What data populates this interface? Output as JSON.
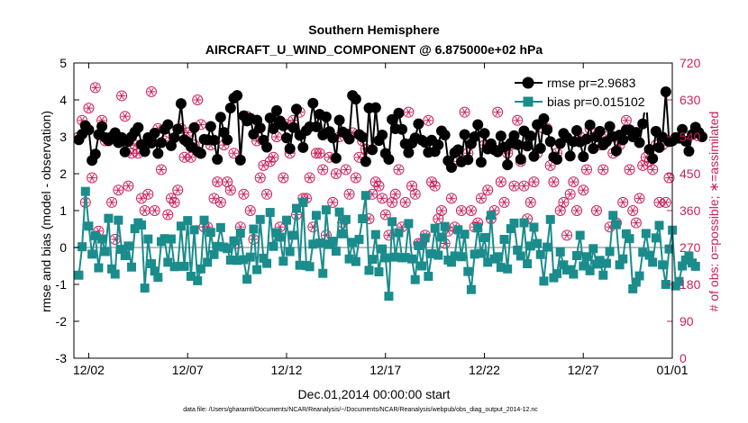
{
  "chart_data": {
    "type": "line",
    "title": "Southern Hemisphere",
    "subtitle": "AIRCRAFT_U_WIND_COMPONENT @ 6.875000e+02 hPa",
    "xlabel": "Dec.01,2014 00:00:00 start",
    "ylabel_left": "rmse and bias (model - observation)",
    "ylabel_right": "# of obs: o=possible; ∗=assimilated",
    "x_ticks": [
      {
        "x": 1.5,
        "label": "12/02"
      },
      {
        "x": 6.5,
        "label": "12/07"
      },
      {
        "x": 11.5,
        "label": "12/12"
      },
      {
        "x": 16.5,
        "label": "12/17"
      },
      {
        "x": 21.5,
        "label": "12/22"
      },
      {
        "x": 26.5,
        "label": "12/27"
      },
      {
        "x": 31.0,
        "label": "01/01"
      }
    ],
    "xlim": [
      0.75,
      31.0
    ],
    "ylim_left": [
      -3,
      5
    ],
    "yticks_left": [
      "-3",
      "-2",
      "-1",
      "0",
      "1",
      "2",
      "3",
      "4",
      "5"
    ],
    "ylim_right": [
      0,
      720
    ],
    "yticks_right": [
      "0",
      "90",
      "180",
      "270",
      "360",
      "450",
      "540",
      "630",
      "720"
    ],
    "colors": {
      "rmse": "#000000",
      "bias": "#1a8c8c",
      "obs": "#cc1f5c",
      "zero_line": "#bdbdbd",
      "frame": "#000000"
    },
    "legend": {
      "position": "top-right",
      "rmse_label": "rmse pr=2.9683",
      "bias_label": "bias pr=0.015102"
    },
    "series": [
      {
        "name": "rmse pr=2.9683",
        "values": [
          2.92,
          3.07,
          3.3,
          3.19,
          2.36,
          2.53,
          3.06,
          3.28,
          2.98,
          2.9,
          3.0,
          3.11,
          2.84,
          2.98,
          2.59,
          2.87,
          3.0,
          3.13,
          3.25,
          2.79,
          2.6,
          2.98,
          2.83,
          3.1,
          2.55,
          2.84,
          3.2,
          3.33,
          2.76,
          2.98,
          3.21,
          3.9,
          2.92,
          2.85,
          2.73,
          3.25,
          2.6,
          2.55,
          2.93,
          2.92,
          3.28,
          2.91,
          2.39,
          3.53,
          3.12,
          2.92,
          3.78,
          4.05,
          4.12,
          2.37,
          3.57,
          3.43,
          3.5,
          3.07,
          3.45,
          3.24,
          2.91,
          2.72,
          3.51,
          3.22,
          3.71,
          3.43,
          3.3,
          2.97,
          2.68,
          3.25,
          3.75,
          3.04,
          2.71,
          3.17,
          3.27,
          3.91,
          3.27,
          3.61,
          3.05,
          3.54,
          3.14,
          2.97,
          2.42,
          3.45,
          3.13,
          3.08,
          2.94,
          4.12,
          4.02,
          3.06,
          2.99,
          2.33,
          3.78,
          2.65,
          3.79,
          2.9,
          3.05,
          2.55,
          2.39,
          3.47,
          3.22,
          3.64,
          3.2,
          2.81,
          2.57,
          2.83,
          2.97,
          3.35,
          2.91,
          2.85,
          2.58,
          2.91,
          2.6,
          2.78,
          3.16,
          3.05,
          2.35,
          2.17,
          2.57,
          2.65,
          2.32,
          3.06,
          2.38,
          2.81,
          3.0,
          3.33,
          2.31,
          3.09,
          2.67,
          2.81,
          2.65,
          2.59,
          3.02,
          2.72,
          2.24,
          2.83,
          3.03,
          2.79,
          2.39,
          3.16,
          2.75,
          3.02,
          2.47,
          3.33,
          2.69,
          3.49,
          3.19,
          2.87,
          2.45,
          2.39,
          2.82,
          3.09,
          2.98,
          2.48,
          2.87,
          3.17,
          2.86,
          2.46,
          2.94,
          3.32,
          2.68,
          3.0,
          3.15,
          2.78,
          2.87,
          3.28,
          3.01,
          2.62,
          3.05,
          2.92,
          3.19,
          3.19,
          3.0,
          3.12,
          2.84,
          3.35,
          4.02,
          2.66,
          2.41,
          3.15,
          2.71,
          2.99,
          4.22,
          2.87,
          2.89,
          2.98,
          2.96,
          3.2,
          2.88,
          2.61,
          3.06,
          3.26,
          3.12,
          3.0
        ]
      },
      {
        "name": "bias pr=0.015102",
        "values": [
          -0.75,
          0.02,
          1.52,
          0.58,
          -0.18,
          0.32,
          -0.55,
          0.23,
          -0.11,
          0.79,
          -0.58,
          -0.72,
          0.74,
          -0.05,
          -0.22,
          0.04,
          -0.53,
          0.51,
          0.67,
          0.61,
          -1.1,
          0.23,
          -0.44,
          -0.64,
          -0.81,
          0.16,
          0.24,
          -0.4,
          0.23,
          -0.52,
          -0.51,
          0.58,
          -0.51,
          0.73,
          -0.78,
          0.48,
          -0.9,
          -0.58,
          0.74,
          -0.4,
          0.41,
          -0.19,
          0.03,
          0.54,
          0.01,
          -0.03,
          -0.34,
          0.18,
          -0.35,
          0.39,
          -0.33,
          -0.86,
          -0.26,
          0.5,
          -0.6,
          0.76,
          -0.29,
          -0.43,
          0.95,
          0.03,
          0.4,
          0.28,
          -0.37,
          0.74,
          -0.11,
          0.33,
          1.06,
          -0.48,
          1.22,
          -0.49,
          -0.52,
          0.09,
          0.87,
          0.12,
          -0.7,
          1.02,
          0.08,
          0.17,
          -0.1,
          0.96,
          0.37,
          0.76,
          -0.31,
          0.14,
          -0.38,
          0.22,
          0.78,
          1.41,
          -0.62,
          -0.32,
          0.35,
          -0.66,
          -0.04,
          -0.28,
          -1.32,
          0.7,
          -0.26,
          0.4,
          -0.28,
          -0.27,
          0.65,
          -0.31,
          -0.87,
          0.05,
          -0.5,
          0.26,
          -0.78,
          -0.17,
          0.52,
          -0.21,
          0.28,
          0.57,
          -0.34,
          -0.4,
          -0.23,
          0.48,
          -0.25,
          0.36,
          -0.65,
          -1.14,
          -0.18,
          0.53,
          -0.16,
          0.27,
          -0.4,
          0.87,
          -0.31,
          -0.25,
          -0.54,
          0.22,
          -0.58,
          0.51,
          0.66,
          -0.07,
          -0.23,
          0.67,
          -0.44,
          0.04,
          0.55,
          0.11,
          -0.19,
          -0.91,
          0.01,
          0.76,
          -0.82,
          -0.71,
          -0.12,
          -0.47,
          -0.61,
          -0.6,
          -0.72,
          -0.22,
          0.33,
          -0.5,
          -0.25,
          -0.63,
          -0.03,
          -0.45,
          -0.35,
          -0.75,
          -0.43,
          -0.11,
          0.87,
          0.62,
          -0.47,
          -0.31,
          0.37,
          0.24,
          -1.12,
          -0.94,
          -0.77,
          -0.13,
          0.38,
          -0.21,
          -0.4,
          0.26,
          0.6,
          -0.47,
          -1.0,
          -0.04,
          0.47,
          -1.04,
          -0.92,
          -0.5,
          -0.34,
          -0.23,
          -0.42,
          -0.51
        ]
      },
      {
        "name": "possible",
        "values": [
          540,
          580,
          380,
          610,
          440,
          660,
          310,
          580,
          530,
          530,
          380,
          290,
          410,
          640,
          590,
          420,
          500,
          520,
          500,
          390,
          360,
          400,
          650,
          360,
          560,
          460,
          530,
          350,
          390,
          380,
          410,
          560,
          490,
          550,
          490,
          520,
          630,
          570,
          320,
          320,
          520,
          390,
          430,
          380,
          520,
          430,
          410,
          500,
          280,
          320,
          400,
          590,
          360,
          290,
          530,
          440,
          470,
          400,
          480,
          490,
          540,
          320,
          440,
          570,
          500,
          580,
          350,
          600,
          390,
          390,
          440,
          320,
          500,
          500,
          460,
          300,
          490,
          380,
          450,
          540,
          330,
          460,
          400,
          550,
          440,
          490,
          530,
          510,
          340,
          400,
          430,
          420,
          390,
          350,
          300,
          380,
          400,
          460,
          320,
          380,
          600,
          420,
          400,
          280,
          280,
          300,
          580,
          430,
          420,
          340,
          360,
          280,
          310,
          390,
          320,
          480,
          360,
          600,
          500,
          360,
          320,
          330,
          390,
          520,
          410,
          340,
          360,
          600,
          430,
          380,
          500,
          520,
          420,
          580,
          480,
          420,
          340,
          380,
          430,
          500,
          620,
          560,
          560,
          470,
          430,
          500,
          360,
          380,
          300,
          400,
          430,
          360,
          540,
          410,
          460,
          560,
          650,
          360,
          520,
          460,
          540,
          320,
          500,
          330,
          520,
          380,
          580,
          460,
          360,
          330,
          390,
          470,
          490,
          480,
          460,
          520,
          380,
          520,
          380,
          440
        ]
      },
      {
        "name": "assimilated",
        "values": [
          540,
          580,
          380,
          610,
          440,
          660,
          310,
          580,
          530,
          530,
          380,
          290,
          410,
          640,
          590,
          420,
          500,
          520,
          500,
          390,
          360,
          400,
          650,
          360,
          560,
          460,
          530,
          350,
          390,
          380,
          410,
          560,
          490,
          550,
          490,
          520,
          630,
          570,
          320,
          320,
          520,
          390,
          430,
          380,
          520,
          430,
          410,
          500,
          280,
          320,
          400,
          590,
          360,
          290,
          530,
          440,
          470,
          400,
          480,
          490,
          540,
          320,
          440,
          570,
          500,
          580,
          350,
          600,
          390,
          390,
          440,
          320,
          500,
          500,
          460,
          300,
          490,
          380,
          450,
          540,
          330,
          460,
          400,
          550,
          440,
          490,
          530,
          510,
          340,
          400,
          430,
          420,
          390,
          350,
          300,
          380,
          400,
          460,
          320,
          380,
          600,
          420,
          400,
          280,
          280,
          300,
          580,
          430,
          420,
          340,
          360,
          280,
          310,
          390,
          320,
          480,
          360,
          600,
          500,
          360,
          320,
          330,
          390,
          520,
          410,
          340,
          360,
          600,
          430,
          380,
          500,
          520,
          420,
          580,
          480,
          420,
          340,
          380,
          430,
          500,
          620,
          560,
          560,
          470,
          430,
          500,
          360,
          380,
          300,
          400,
          430,
          360,
          540,
          410,
          460,
          560,
          650,
          360,
          520,
          460,
          540,
          320,
          500,
          330,
          520,
          380,
          580,
          460,
          360,
          330,
          390,
          470,
          490,
          480,
          460,
          520,
          380,
          520,
          380,
          440
        ]
      }
    ],
    "grid": false,
    "data_file_label": "data file: /Users/gharamti/Documents/NCAR/Reanalysis/~/Documents/NCAR/Reanalysis/webpub/obs_diag_output_2014-12.nc"
  }
}
